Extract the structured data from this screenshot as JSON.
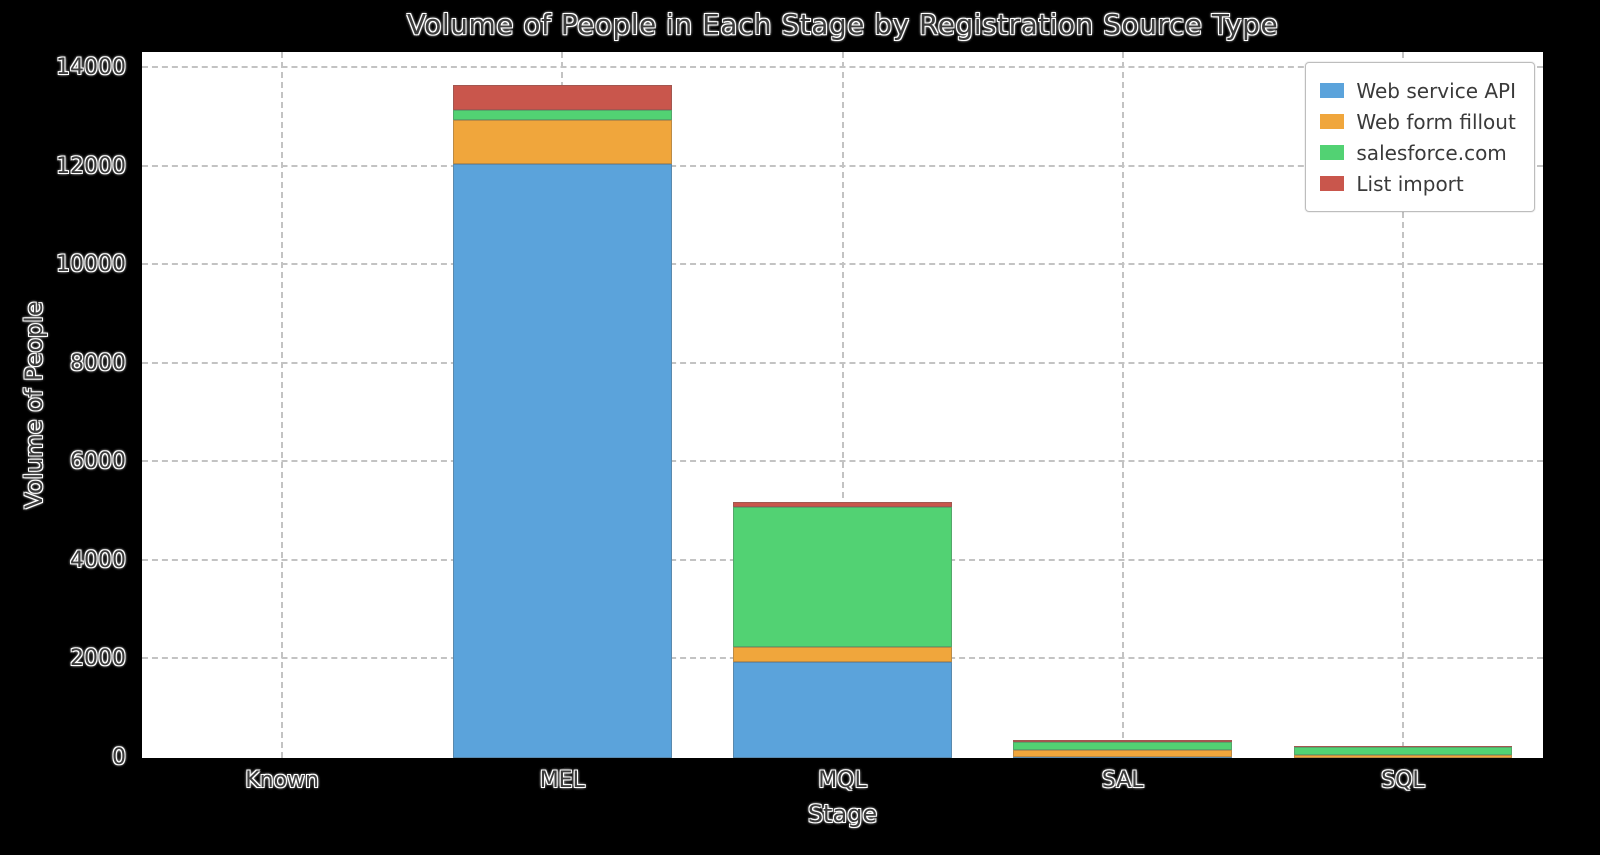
{
  "figure": {
    "title": "Volume of People in Each Stage by Registration Source Type",
    "xlabel": "Stage",
    "ylabel": "Volume of People"
  },
  "chart_data": {
    "type": "bar",
    "stacked": true,
    "title": "Volume of People in Each Stage by Registration Source Type",
    "xlabel": "Stage",
    "ylabel": "Volume of People",
    "categories": [
      "Known",
      "MEL",
      "MQL",
      "SAL",
      "SQL"
    ],
    "series": [
      {
        "name": "Web service API",
        "color": "#5BA3DB",
        "values": [
          0,
          12050,
          1950,
          20,
          10
        ]
      },
      {
        "name": "Web form fillout",
        "color": "#F0A63C",
        "values": [
          0,
          900,
          300,
          140,
          50
        ]
      },
      {
        "name": "salesforce.com",
        "color": "#52D273",
        "values": [
          0,
          200,
          2850,
          170,
          170
        ]
      },
      {
        "name": "List import",
        "color": "#C9564C",
        "values": [
          0,
          500,
          100,
          30,
          20
        ]
      }
    ],
    "ylim": [
      0,
      14000
    ],
    "yticks": [
      0,
      2000,
      4000,
      6000,
      8000,
      10000,
      12000,
      14000
    ],
    "grid": true,
    "grid_style": "dashed",
    "legend_position": "upper right",
    "background": "#000000",
    "plot_background": "#ffffff"
  }
}
